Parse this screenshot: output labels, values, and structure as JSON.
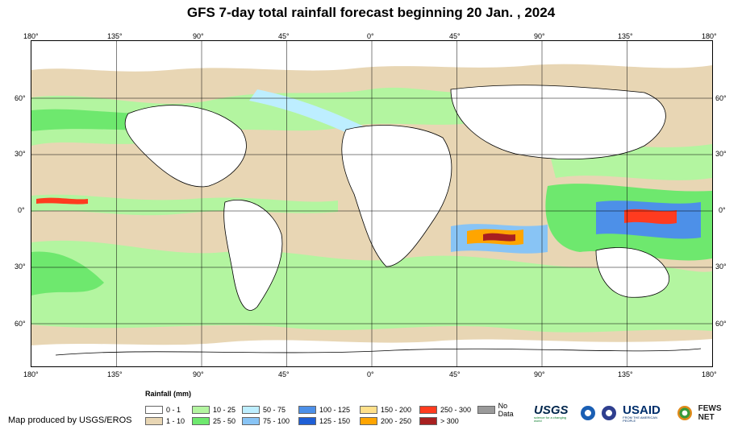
{
  "title": "GFS 7-day total rainfall forecast beginning 20 Jan. , 2024",
  "axes": {
    "lon_labels": [
      "180°",
      "135°",
      "90°",
      "45°",
      "0°",
      "45°",
      "90°",
      "135°",
      "180°"
    ],
    "lat_labels": [
      "60°",
      "30°",
      "0°",
      "30°",
      "60°"
    ]
  },
  "legend": {
    "title": "Rainfall (mm)",
    "items": [
      {
        "label": "0 - 1",
        "color": "#ffffff"
      },
      {
        "label": "1 - 10",
        "color": "#e8d6b4"
      },
      {
        "label": "10 - 25",
        "color": "#b3f5a0"
      },
      {
        "label": "25 - 50",
        "color": "#6ee86e"
      },
      {
        "label": "50 - 75",
        "color": "#bdeeff"
      },
      {
        "label": "75 - 100",
        "color": "#88c4f5"
      },
      {
        "label": "100 - 125",
        "color": "#4d90e8"
      },
      {
        "label": "125 - 150",
        "color": "#1f5fd6"
      },
      {
        "label": "150 - 200",
        "color": "#ffe08a"
      },
      {
        "label": "200 - 250",
        "color": "#ffa500"
      },
      {
        "label": "250 - 300",
        "color": "#ff3b1f"
      },
      {
        "label": "> 300",
        "color": "#a82020"
      },
      {
        "label": "No Data",
        "color": "#9a9a9a"
      }
    ]
  },
  "credit": "Map produced by USGS/EROS",
  "logos": {
    "usgs": "USGS",
    "usgs_tagline": "science for a changing world",
    "usaid": "USAID",
    "usaid_tagline": "FROM THE AMERICAN PEOPLE",
    "fews": "FEWS NET"
  }
}
